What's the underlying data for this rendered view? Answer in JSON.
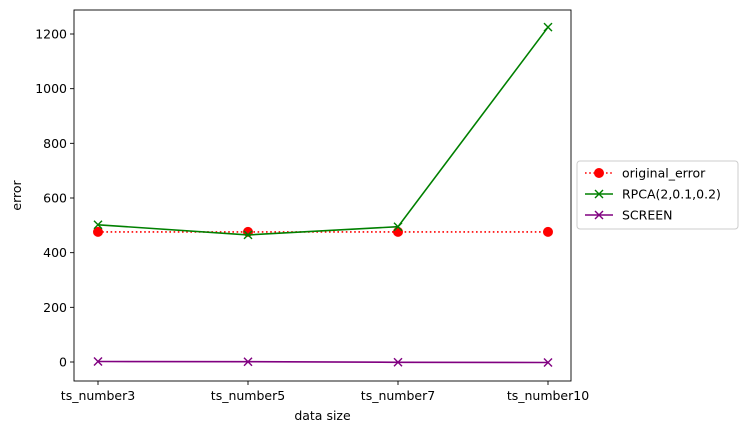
{
  "chart_data": {
    "type": "line",
    "categories": [
      "ts_number3",
      "ts_number5",
      "ts_number7",
      "ts_number10"
    ],
    "xlabel": "data size",
    "ylabel": "error",
    "ylim": [
      -50,
      1280
    ],
    "yticks": [
      0,
      200,
      400,
      600,
      800,
      1000,
      1200
    ],
    "grid": false,
    "legend_position": "outside-right",
    "series": [
      {
        "name": "original_error",
        "values": [
          476,
          476,
          476,
          476
        ],
        "color": "#ff0000",
        "style": "dotted",
        "marker": "circle"
      },
      {
        "name": "RPCA(2,0.1,0.2)",
        "values": [
          502,
          465,
          495,
          1225
        ],
        "color": "#008000",
        "style": "solid",
        "marker": "x"
      },
      {
        "name": "SCREEN",
        "values": [
          2,
          1,
          -1,
          -2
        ],
        "color": "#800080",
        "style": "solid",
        "marker": "x"
      }
    ]
  }
}
